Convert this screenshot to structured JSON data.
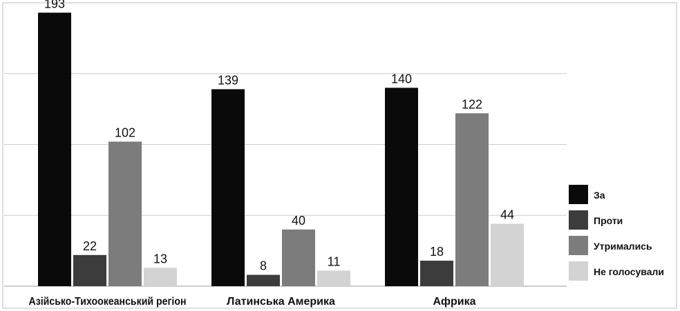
{
  "chart_data": {
    "type": "bar",
    "categories": [
      "Азійсько-Тихоокеанський регіон",
      "Латинська Америка",
      "Африка"
    ],
    "series": [
      {
        "name": "За",
        "values": [
          193,
          139,
          140
        ],
        "color": "#0a0a0a"
      },
      {
        "name": "Проти",
        "values": [
          22,
          8,
          18
        ],
        "color": "#3c3c3c"
      },
      {
        "name": "Утримались",
        "values": [
          102,
          40,
          122
        ],
        "color": "#7c7c7c"
      },
      {
        "name": "Не голосували",
        "values": [
          13,
          11,
          44
        ],
        "color": "#d3d3d3"
      }
    ],
    "ylim": [
      0,
      200
    ],
    "grid": true,
    "legend": "right"
  }
}
